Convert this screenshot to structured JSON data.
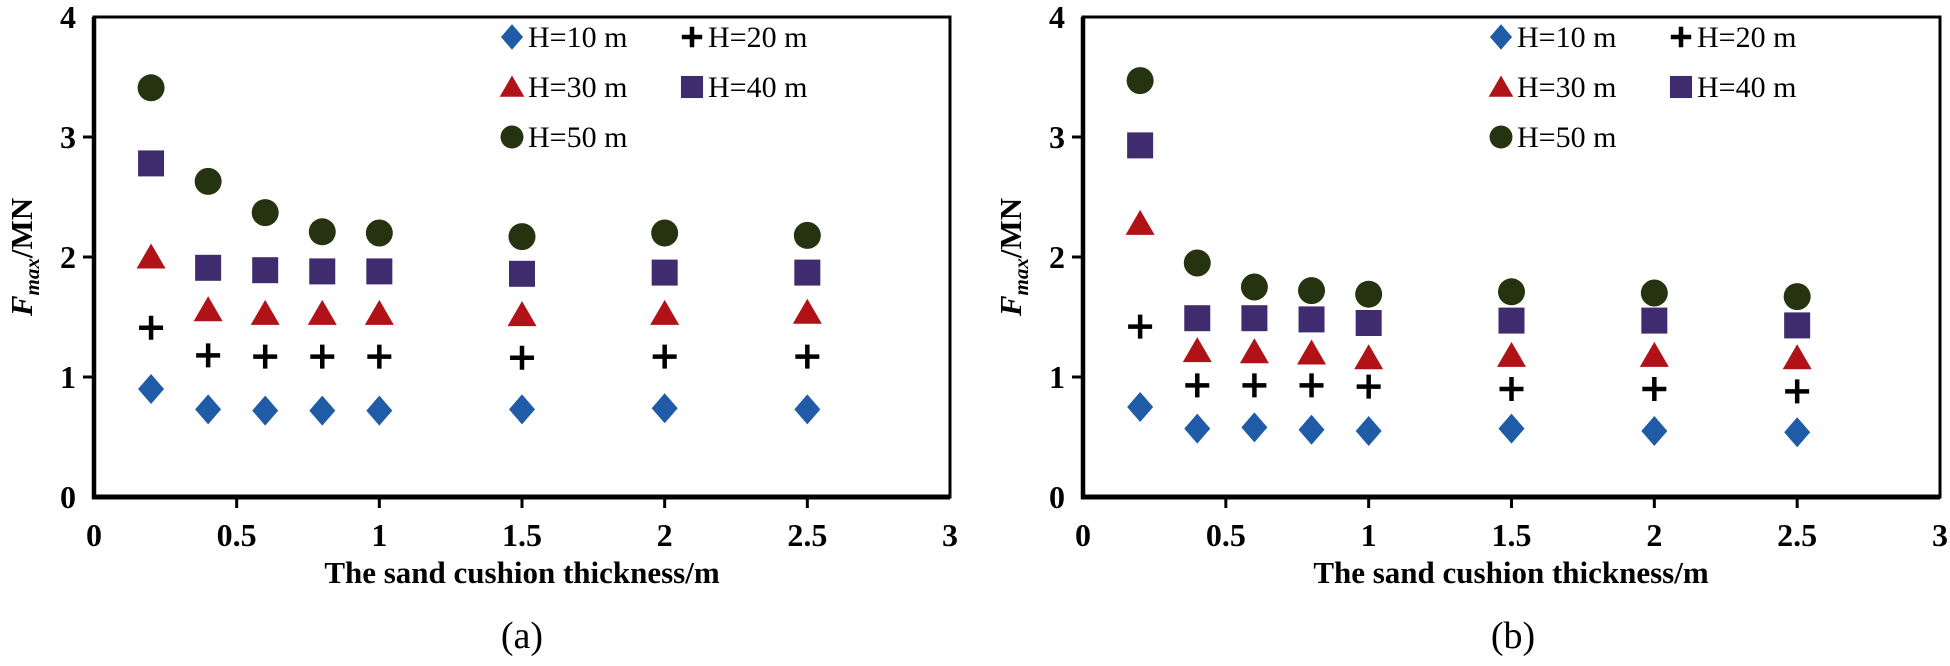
{
  "figure": {
    "background": "#ffffff",
    "text_color": "#000000",
    "ylabel": {
      "f": "F",
      "sub": "max",
      "rest": "/MN"
    }
  },
  "legend_markers": [
    {
      "icon": "diamond-marker-icon",
      "color": "#1f5ba7"
    },
    {
      "icon": "plus-marker-icon",
      "color": "#000000"
    },
    {
      "icon": "triangle-marker-icon",
      "color": "#b11218"
    },
    {
      "icon": "square-marker-icon",
      "color": "#3f2c6e"
    },
    {
      "icon": "circle-marker-icon",
      "color": "#263311"
    }
  ],
  "chart_data": [
    {
      "id": "a",
      "type": "scatter",
      "caption": "(a)",
      "title": "",
      "xlabel": "The sand cushion thickness/m",
      "ylabel": "F_max/MN",
      "xlim": [
        0,
        3
      ],
      "ylim": [
        0,
        4
      ],
      "grid": false,
      "legend_position": "upper-right-inside",
      "x_ticks": [
        0,
        0.5,
        1,
        1.5,
        2,
        2.5,
        3
      ],
      "x_tick_labels": [
        "0",
        "0.5",
        "1",
        "1.5",
        "2",
        "2.5",
        "3"
      ],
      "y_ticks": [
        0,
        1,
        2,
        3,
        4
      ],
      "y_tick_labels": [
        "0",
        "1",
        "2",
        "3",
        "4"
      ],
      "x": [
        0.2,
        0.4,
        0.6,
        0.8,
        1.0,
        1.5,
        2.0,
        2.5
      ],
      "series": [
        {
          "name": "H=10 m",
          "marker": "diamond",
          "color": "#1f5ba7",
          "values": [
            0.9,
            0.73,
            0.72,
            0.72,
            0.72,
            0.73,
            0.74,
            0.73
          ]
        },
        {
          "name": "H=20 m",
          "marker": "plus",
          "color": "#000000",
          "values": [
            1.41,
            1.18,
            1.17,
            1.17,
            1.17,
            1.16,
            1.17,
            1.17
          ]
        },
        {
          "name": "H=30 m",
          "marker": "triangle",
          "color": "#b11218",
          "values": [
            2.0,
            1.56,
            1.53,
            1.53,
            1.53,
            1.52,
            1.53,
            1.54
          ]
        },
        {
          "name": "H=40 m",
          "marker": "square",
          "color": "#3f2c6e",
          "values": [
            2.78,
            1.91,
            1.89,
            1.88,
            1.88,
            1.86,
            1.87,
            1.87
          ]
        },
        {
          "name": "H=50 m",
          "marker": "circle",
          "color": "#263311",
          "values": [
            3.41,
            2.63,
            2.37,
            2.21,
            2.2,
            2.17,
            2.2,
            2.18
          ]
        }
      ]
    },
    {
      "id": "b",
      "type": "scatter",
      "caption": "(b)",
      "title": "",
      "xlabel": "The sand cushion thickness/m",
      "ylabel": "F_max/MN",
      "xlim": [
        0,
        3
      ],
      "ylim": [
        0,
        4
      ],
      "grid": false,
      "legend_position": "upper-right-inside",
      "x_ticks": [
        0,
        0.5,
        1,
        1.5,
        2,
        2.5,
        3
      ],
      "x_tick_labels": [
        "0",
        "0.5",
        "1",
        "1.5",
        "2",
        "2.5",
        "3"
      ],
      "y_ticks": [
        0,
        1,
        2,
        3,
        4
      ],
      "y_tick_labels": [
        "0",
        "1",
        "2",
        "3",
        "4"
      ],
      "x": [
        0.2,
        0.4,
        0.6,
        0.8,
        1.0,
        1.5,
        2.0,
        2.5
      ],
      "series": [
        {
          "name": "H=10 m",
          "marker": "diamond",
          "color": "#1f5ba7",
          "values": [
            0.75,
            0.57,
            0.58,
            0.56,
            0.55,
            0.57,
            0.55,
            0.54
          ]
        },
        {
          "name": "H=20 m",
          "marker": "plus",
          "color": "#000000",
          "values": [
            1.42,
            0.93,
            0.93,
            0.93,
            0.92,
            0.9,
            0.9,
            0.88
          ]
        },
        {
          "name": "H=30 m",
          "marker": "triangle",
          "color": "#b11218",
          "values": [
            2.28,
            1.22,
            1.21,
            1.2,
            1.16,
            1.18,
            1.18,
            1.16
          ]
        },
        {
          "name": "H=40 m",
          "marker": "square",
          "color": "#3f2c6e",
          "values": [
            2.93,
            1.49,
            1.49,
            1.48,
            1.45,
            1.47,
            1.47,
            1.43
          ]
        },
        {
          "name": "H=50 m",
          "marker": "circle",
          "color": "#263311",
          "values": [
            3.47,
            1.95,
            1.75,
            1.72,
            1.69,
            1.71,
            1.7,
            1.67
          ]
        }
      ]
    }
  ]
}
